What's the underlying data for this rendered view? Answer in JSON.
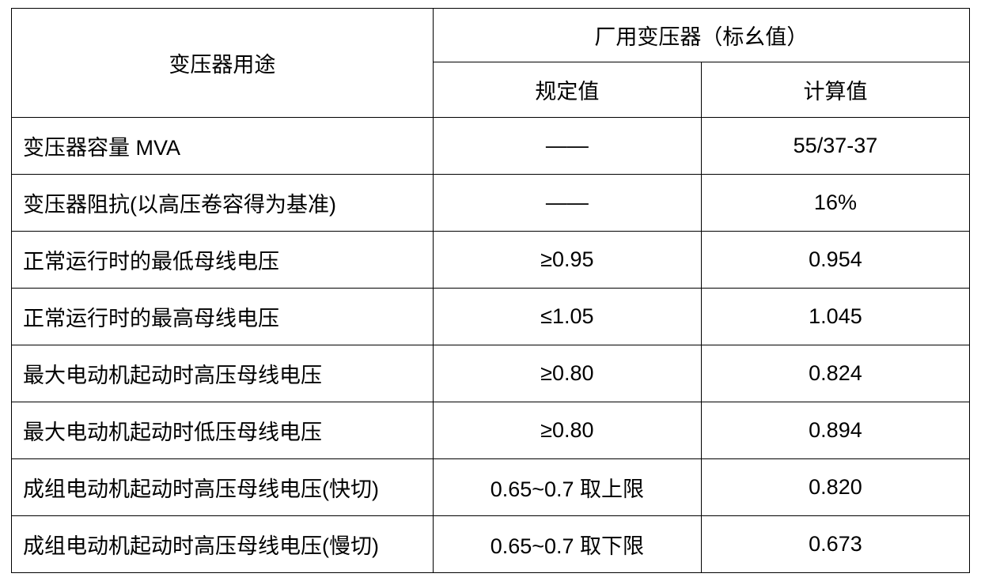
{
  "table": {
    "header": {
      "row_label": "变压器用途",
      "group_label": "厂用变压器（标幺值）",
      "sub_spec": "规定值",
      "sub_calc": "计算值"
    },
    "rows": [
      {
        "label": "变压器容量 MVA",
        "spec": "——",
        "calc": "55/37-37"
      },
      {
        "label": "变压器阻抗(以高压卷容得为基准)",
        "spec": "——",
        "calc": "16%"
      },
      {
        "label": "正常运行时的最低母线电压",
        "spec": "≥0.95",
        "calc": "0.954"
      },
      {
        "label": "正常运行时的最高母线电压",
        "spec": "≤1.05",
        "calc": "1.045"
      },
      {
        "label": "最大电动机起动时高压母线电压",
        "spec": "≥0.80",
        "calc": "0.824"
      },
      {
        "label": "最大电动机起动时低压母线电压",
        "spec": "≥0.80",
        "calc": "0.894"
      },
      {
        "label": "成组电动机起动时高压母线电压(快切)",
        "spec": "0.65~0.7 取上限",
        "calc": "0.820"
      },
      {
        "label": "成组电动机起动时高压母线电压(慢切)",
        "spec": "0.65~0.7 取下限",
        "calc": "0.673"
      }
    ],
    "style": {
      "border_color": "#000000",
      "background_color": "#ffffff",
      "text_color": "#000000",
      "font_family": "Microsoft YaHei / SimSun",
      "header_fontsize_pt": 20,
      "body_fontsize_pt": 20,
      "col_widths_pct": [
        44,
        28,
        28
      ]
    }
  }
}
